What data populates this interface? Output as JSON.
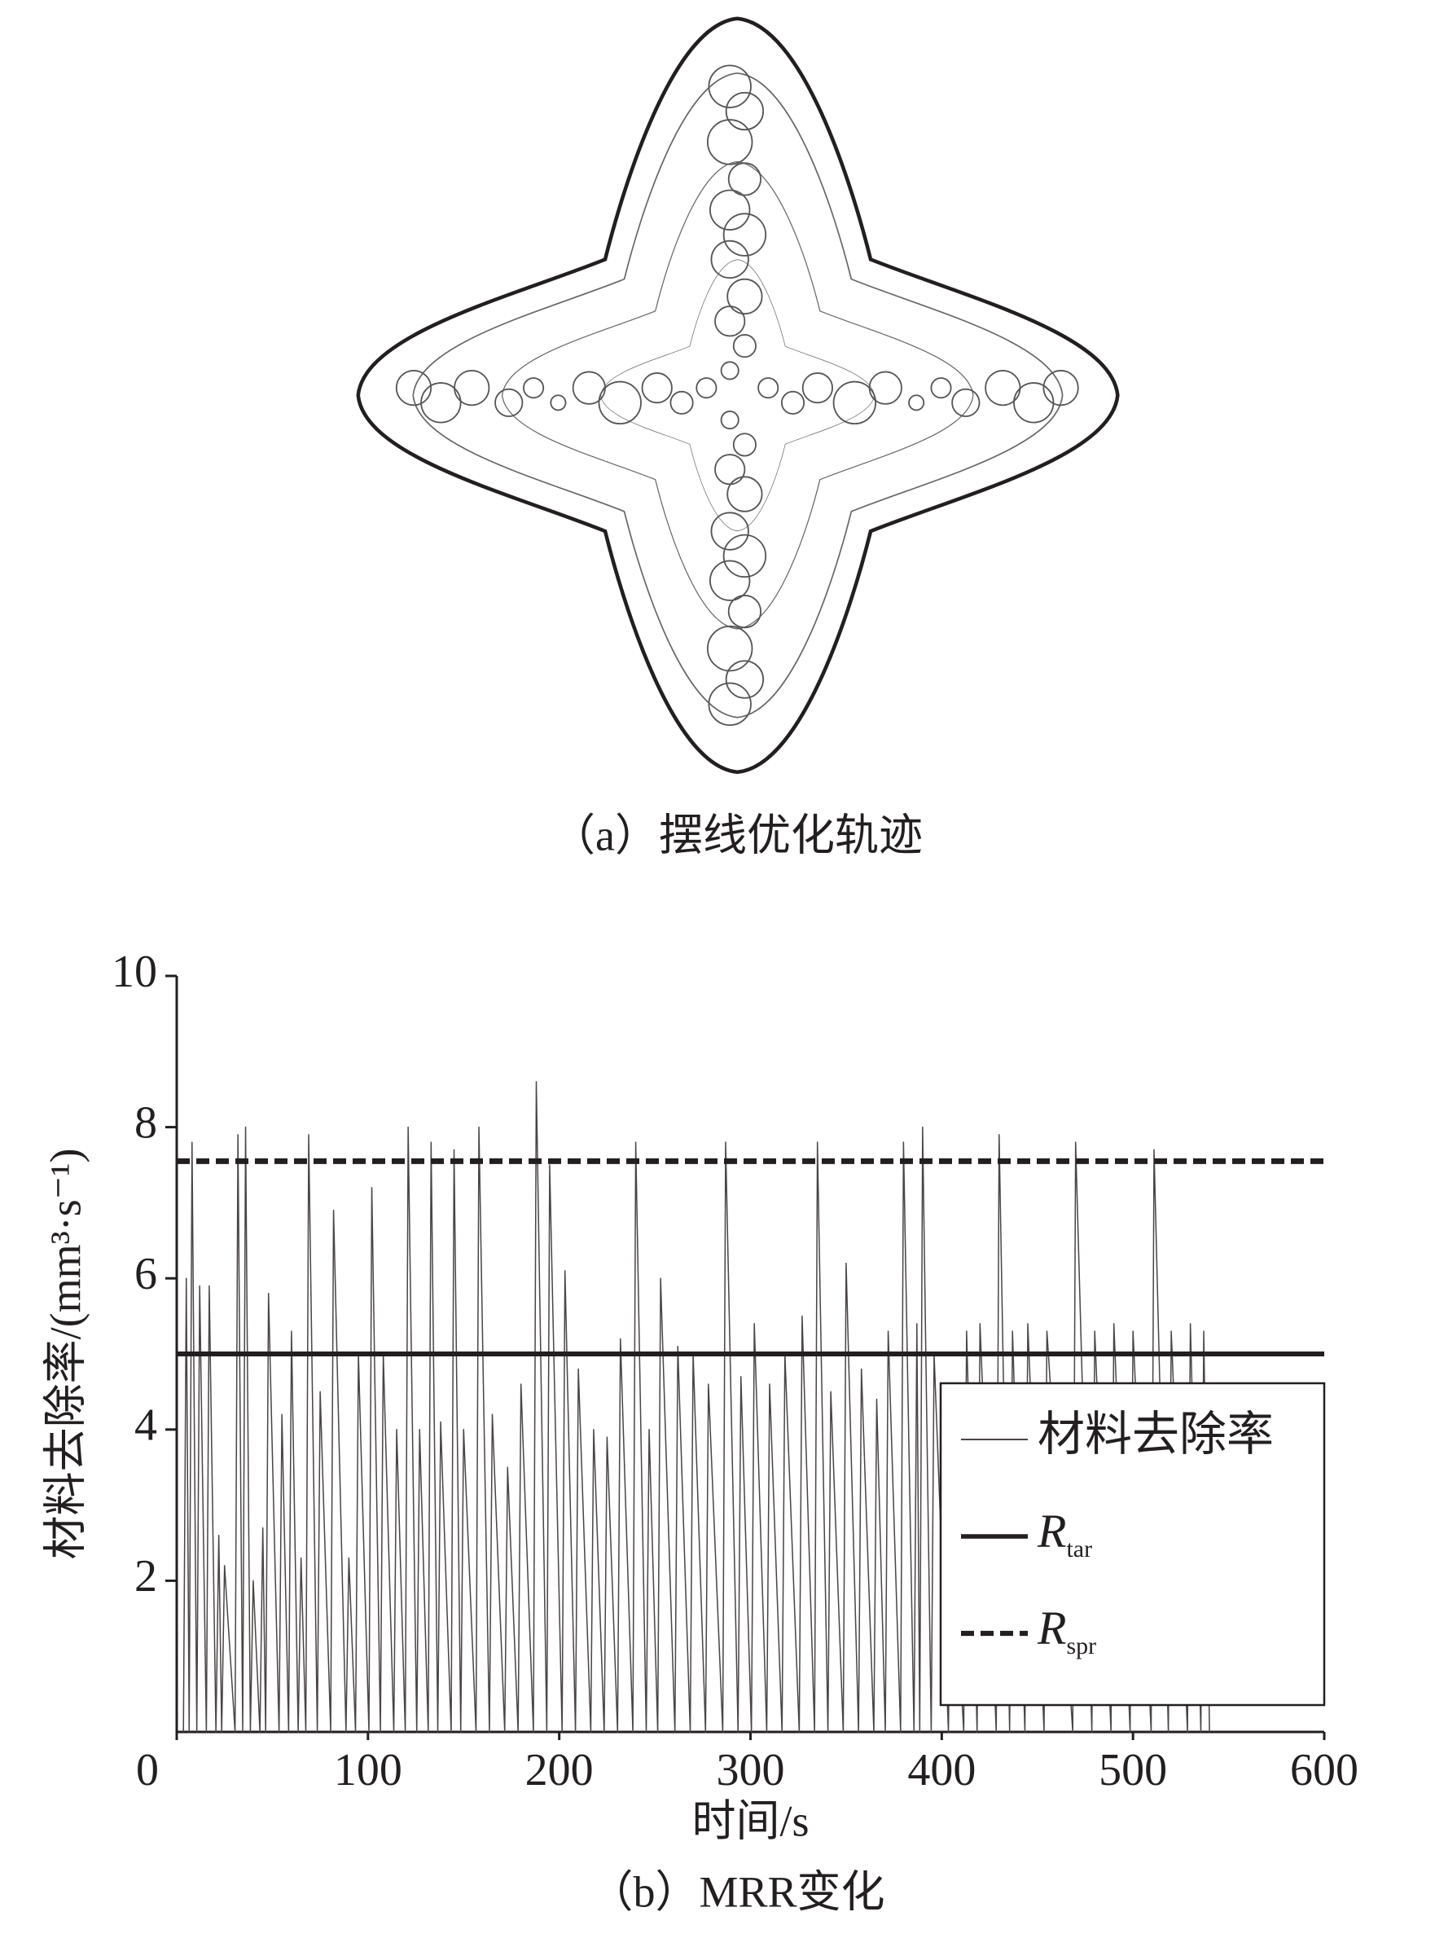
{
  "figure_a": {
    "caption": "（a）摆线优化轨迹"
  },
  "chart_data": {
    "type": "line",
    "caption": "（b）MRR变化",
    "x_label": "时间/s",
    "y_label": "材料去除率/(mm³·s⁻¹)",
    "xlim": [
      0,
      600
    ],
    "ylim": [
      0,
      10
    ],
    "xticks": [
      0,
      100,
      200,
      300,
      400,
      500,
      600
    ],
    "yticks": [
      2,
      4,
      6,
      8,
      10
    ],
    "legend": "lower right",
    "series": [
      {
        "name": "材料去除率",
        "color": "#4a4444",
        "dash": false,
        "width": 1.5,
        "x": [
          3.5,
          5,
          6.5,
          8,
          10.5,
          12,
          15.5,
          17,
          20.5,
          22,
          23.5,
          25,
          30.5,
          32,
          34.5,
          36,
          38.5,
          40,
          43.5,
          45,
          46.5,
          48,
          53.5,
          55,
          58.5,
          60,
          63.5,
          65,
          67.5,
          69,
          73.5,
          75,
          80.5,
          82,
          88.5,
          90,
          93.5,
          95,
          100.5,
          102,
          106.5,
          108,
          113.5,
          115,
          119.5,
          121,
          125.5,
          127,
          131.5,
          133,
          136.5,
          138,
          143.5,
          145,
          148.5,
          150,
          156.5,
          158,
          163.5,
          165,
          171.5,
          173,
          178.5,
          180,
          186.5,
          188,
          193.5,
          195,
          201.5,
          203,
          208.5,
          210,
          216.5,
          218,
          223.5,
          225,
          230.5,
          232,
          238.5,
          240,
          245.5,
          247,
          251.5,
          253,
          260.5,
          262,
          268.5,
          270,
          276.5,
          278,
          285.5,
          287,
          293.5,
          295,
          300.5,
          302,
          308.5,
          310,
          316.5,
          318,
          325.5,
          327,
          333.5,
          335,
          340.5,
          342,
          348.5,
          350,
          356.5,
          358,
          364.5,
          366,
          370.5,
          372,
          378.5,
          380,
          385.5,
          387,
          388.5,
          390,
          394.5,
          396,
          403.5,
          405,
          411.5,
          413,
          418.5,
          420,
          428.5,
          430,
          435.5,
          437,
          443.5,
          445,
          453.5,
          455,
          468.5,
          470,
          478.5,
          480,
          488.5,
          490,
          498.5,
          500,
          509.5,
          511,
          518.5,
          520,
          528.5,
          530,
          535.5,
          537,
          540
        ],
        "values": [
          0,
          6.0,
          0,
          7.8,
          0,
          5.9,
          0,
          5.9,
          0,
          2.6,
          0,
          2.2,
          0,
          7.9,
          0,
          8.0,
          0,
          2.0,
          0,
          2.7,
          0,
          5.8,
          0,
          4.2,
          0,
          5.3,
          0,
          2.3,
          0,
          7.9,
          0,
          4.5,
          0,
          6.9,
          0,
          2.3,
          0,
          5.0,
          0,
          7.2,
          0,
          5.0,
          0,
          4.0,
          0,
          8.0,
          0,
          4.0,
          0,
          7.8,
          0,
          4.1,
          0,
          7.7,
          0,
          4.0,
          0,
          8.0,
          0,
          4.2,
          0,
          3.5,
          0,
          4.6,
          0,
          8.6,
          0,
          7.5,
          0,
          6.1,
          0,
          4.8,
          0,
          4.0,
          0,
          3.9,
          0,
          5.2,
          0,
          7.8,
          0,
          4.0,
          0,
          6.0,
          0,
          5.1,
          0,
          5.0,
          0,
          4.6,
          0,
          7.8,
          0,
          4.7,
          0,
          5.4,
          0,
          4.6,
          0,
          5.0,
          0,
          5.5,
          0,
          7.8,
          0,
          4.5,
          0,
          6.2,
          0,
          4.8,
          0,
          4.4,
          0,
          5.3,
          0,
          7.8,
          0,
          5.4,
          0,
          8.0,
          0,
          5.0,
          0,
          3.0,
          0,
          5.3,
          0,
          5.4,
          0,
          7.9,
          0,
          5.3,
          0,
          5.4,
          0,
          5.3,
          0,
          7.8,
          0,
          5.3,
          0,
          5.4,
          0,
          5.3,
          0,
          7.7,
          0,
          5.3,
          0,
          5.4,
          0,
          5.3,
          0
        ]
      },
      {
        "name": "R",
        "subscript": "tar",
        "color": "#231f20",
        "dash": false,
        "width": 6,
        "x": [
          0,
          600
        ],
        "values": [
          5.0,
          5.0
        ]
      },
      {
        "name": "R",
        "subscript": "spr",
        "color": "#231f20",
        "dash": true,
        "width": 7,
        "x": [
          0,
          600
        ],
        "values": [
          7.55,
          7.55
        ]
      }
    ]
  }
}
